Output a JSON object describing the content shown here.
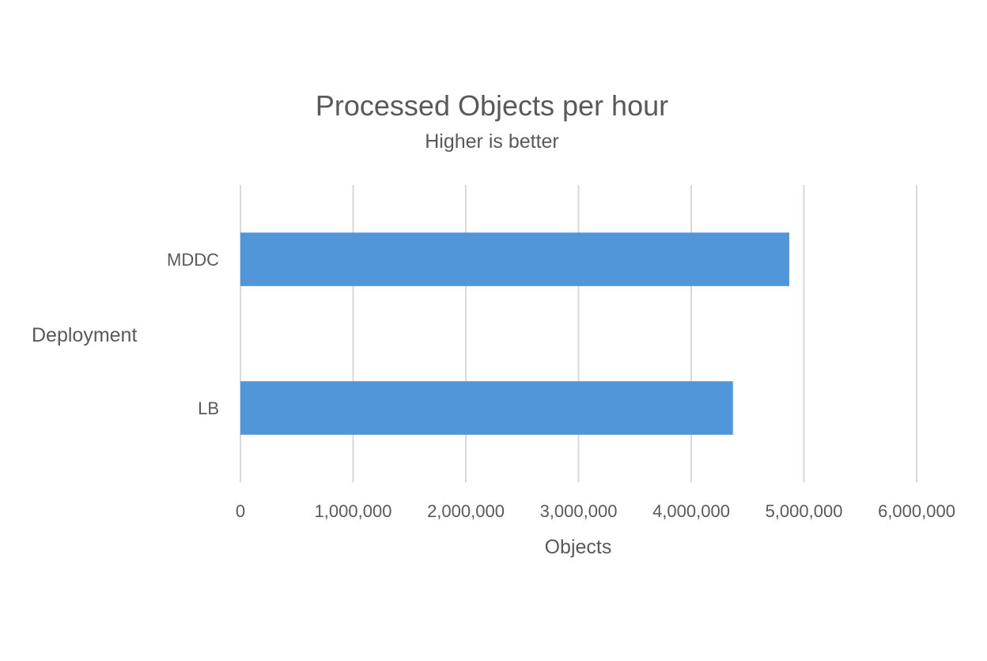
{
  "chart_data": {
    "type": "bar",
    "orientation": "horizontal",
    "title": "Processed Objects per hour",
    "subtitle": "Higher is better",
    "xlabel": "Objects",
    "ylabel": "Deployment",
    "categories": [
      "MDDC",
      "LB"
    ],
    "values": [
      4870000,
      4370000
    ],
    "xlim": [
      0,
      6000000
    ],
    "x_ticks": [
      0,
      1000000,
      2000000,
      3000000,
      4000000,
      5000000,
      6000000
    ],
    "x_tick_labels": [
      "0",
      "1,000,000",
      "2,000,000",
      "3,000,000",
      "4,000,000",
      "5,000,000",
      "6,000,000"
    ],
    "grid": "vertical",
    "legend": "none",
    "bar_color": "#5096d9"
  }
}
